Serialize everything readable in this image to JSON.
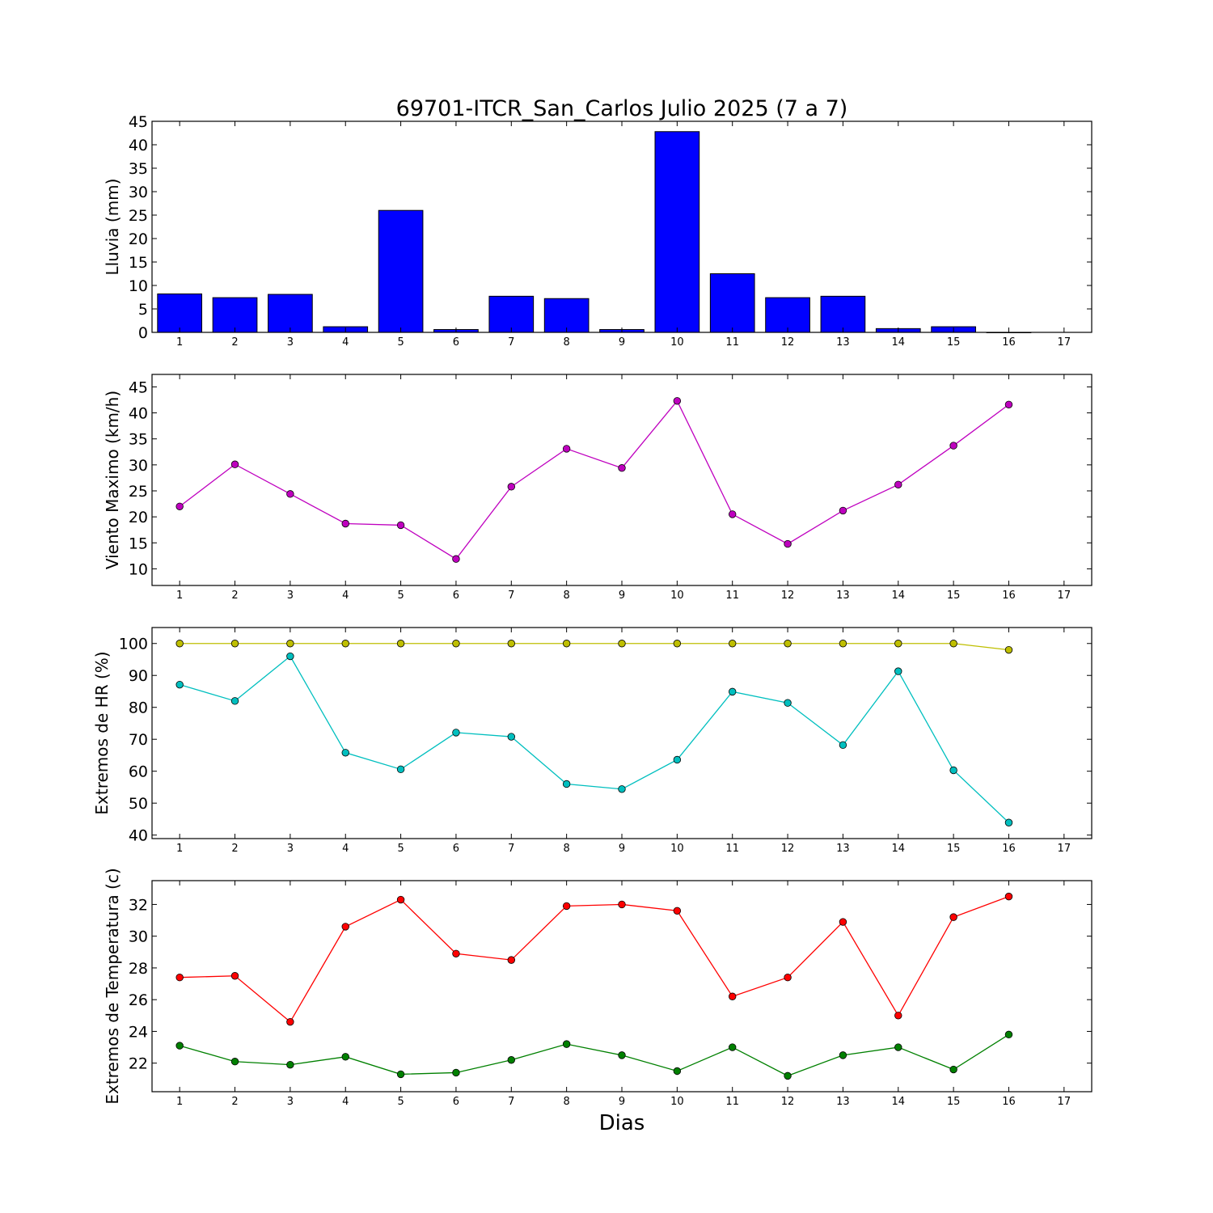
{
  "title": "69701-ITCR_San_Carlos Julio 2025  (7 a 7)",
  "xlabel": "Dias",
  "chart_data": [
    {
      "type": "bar",
      "ylabel": "Lluvia (mm)",
      "x": [
        1,
        2,
        3,
        4,
        5,
        6,
        7,
        8,
        9,
        10,
        11,
        12,
        13,
        14,
        15,
        16
      ],
      "xticks": [
        1,
        2,
        3,
        4,
        5,
        6,
        7,
        8,
        9,
        10,
        11,
        12,
        13,
        14,
        15,
        16,
        17
      ],
      "xlim": [
        0.5,
        17.5
      ],
      "yticks": [
        0,
        5,
        10,
        15,
        20,
        25,
        30,
        35,
        40,
        45
      ],
      "ylim": [
        0,
        45
      ],
      "series": [
        {
          "values": [
            8.2,
            7.4,
            8.1,
            1.2,
            26.0,
            0.6,
            7.7,
            7.2,
            0.6,
            42.8,
            12.5,
            7.4,
            7.7,
            0.8,
            1.2,
            0.0
          ],
          "color": "#0000ff"
        }
      ]
    },
    {
      "type": "line",
      "ylabel": "Viento Maximo (km/h)",
      "x": [
        1,
        2,
        3,
        4,
        5,
        6,
        7,
        8,
        9,
        10,
        11,
        12,
        13,
        14,
        15,
        16
      ],
      "xticks": [
        1,
        2,
        3,
        4,
        5,
        6,
        7,
        8,
        9,
        10,
        11,
        12,
        13,
        14,
        15,
        16,
        17
      ],
      "xlim": [
        0.5,
        17.5
      ],
      "yticks": [
        10,
        15,
        20,
        25,
        30,
        35,
        40,
        45
      ],
      "ylim": [
        6.8,
        47.4
      ],
      "series": [
        {
          "values": [
            22.0,
            30.1,
            24.4,
            18.7,
            18.4,
            11.9,
            25.8,
            33.1,
            29.4,
            42.3,
            20.5,
            14.8,
            21.2,
            26.2,
            33.7,
            41.6
          ],
          "color": "#bf00bf"
        }
      ]
    },
    {
      "type": "line",
      "ylabel": "Extremos de HR (%)",
      "x": [
        1,
        2,
        3,
        4,
        5,
        6,
        7,
        8,
        9,
        10,
        11,
        12,
        13,
        14,
        15,
        16
      ],
      "xticks": [
        1,
        2,
        3,
        4,
        5,
        6,
        7,
        8,
        9,
        10,
        11,
        12,
        13,
        14,
        15,
        16,
        17
      ],
      "xlim": [
        0.5,
        17.5
      ],
      "yticks": [
        40,
        50,
        60,
        70,
        80,
        90,
        100
      ],
      "ylim": [
        38.9,
        105
      ],
      "series": [
        {
          "values": [
            100,
            100,
            100,
            100,
            100,
            100,
            100,
            100,
            100,
            100,
            100,
            100,
            100,
            100,
            100,
            98
          ],
          "color": "#bfbf00"
        },
        {
          "values": [
            87.1,
            82.0,
            96.0,
            65.8,
            60.6,
            72.1,
            70.8,
            56.0,
            54.4,
            63.6,
            84.9,
            81.4,
            68.2,
            91.3,
            60.3,
            43.9
          ],
          "color": "#00bfbf"
        }
      ]
    },
    {
      "type": "line",
      "ylabel": "Extremos de Temperatura (c)",
      "x": [
        1,
        2,
        3,
        4,
        5,
        6,
        7,
        8,
        9,
        10,
        11,
        12,
        13,
        14,
        15,
        16
      ],
      "xticks": [
        1,
        2,
        3,
        4,
        5,
        6,
        7,
        8,
        9,
        10,
        11,
        12,
        13,
        14,
        15,
        16,
        17
      ],
      "xlim": [
        0.5,
        17.5
      ],
      "yticks": [
        22,
        24,
        26,
        28,
        30,
        32
      ],
      "ylim": [
        20.2,
        33.5
      ],
      "series": [
        {
          "values": [
            27.4,
            27.5,
            24.6,
            30.6,
            32.3,
            28.9,
            28.5,
            31.9,
            32.0,
            31.6,
            26.2,
            27.4,
            30.9,
            25.0,
            31.2,
            32.5
          ],
          "color": "#ff0000"
        },
        {
          "values": [
            23.1,
            22.1,
            21.9,
            22.4,
            21.3,
            21.4,
            22.2,
            23.2,
            22.5,
            21.5,
            23.0,
            21.2,
            22.5,
            23.0,
            21.6,
            23.8
          ],
          "color": "#008000"
        }
      ]
    }
  ]
}
